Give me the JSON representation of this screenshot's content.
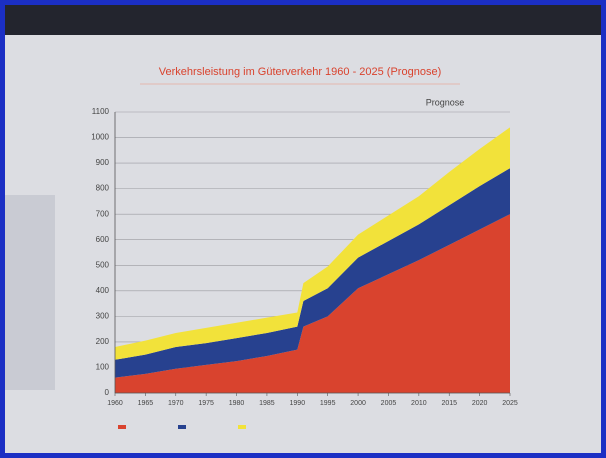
{
  "chart_data": {
    "type": "stacked-area",
    "title": "Verkehrsleistung im Güterverkehr 1960 - 2025 (Prognose)",
    "annotation": "Prognose",
    "x": [
      1960,
      1965,
      1970,
      1975,
      1980,
      1985,
      1990,
      1991,
      1995,
      2000,
      2010,
      2015,
      2020,
      2025
    ],
    "series": [
      {
        "color": "#d9432e",
        "values": [
          60,
          75,
          95,
          110,
          125,
          145,
          170,
          260,
          300,
          410,
          520,
          580,
          640,
          700
        ]
      },
      {
        "color": "#27418f",
        "values": [
          70,
          75,
          85,
          85,
          90,
          90,
          90,
          100,
          110,
          120,
          140,
          155,
          170,
          180
        ]
      },
      {
        "color": "#f2e23a",
        "values": [
          50,
          55,
          55,
          60,
          60,
          60,
          55,
          70,
          85,
          90,
          110,
          130,
          145,
          160
        ]
      }
    ],
    "xlim": [
      1960,
      2025
    ],
    "xticks": [
      1960,
      1965,
      1970,
      1975,
      1980,
      1985,
      1990,
      1995,
      2000,
      2005,
      2010,
      2015,
      2020,
      2025
    ],
    "ylim": [
      0,
      1100
    ],
    "yticks": [
      0,
      100,
      200,
      300,
      400,
      500,
      600,
      700,
      800,
      900,
      1000,
      1100
    ],
    "grid": true
  }
}
